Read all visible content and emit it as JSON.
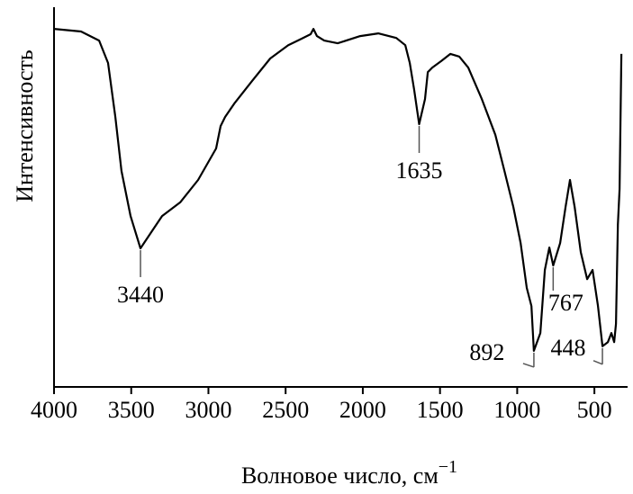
{
  "chart_data": {
    "type": "line",
    "xlabel": "Волновое число, см",
    "xlabel_superscript": "−1",
    "ylabel": "Интенсивность",
    "xlim": [
      4000,
      285
    ],
    "ylim": [
      0,
      100
    ],
    "xticks": [
      4000,
      3500,
      3000,
      2500,
      2000,
      1500,
      1000,
      500
    ],
    "annotations": [
      3440,
      1635,
      892,
      767,
      448
    ],
    "series": [
      {
        "color": "#000000",
        "x": [
          4000,
          3825,
          3708,
          3650,
          3603,
          3563,
          3504,
          3440,
          3358,
          3300,
          3183,
          3067,
          2950,
          2921,
          2892,
          2833,
          2717,
          2600,
          2483,
          2396,
          2338,
          2320,
          2297,
          2250,
          2163,
          2017,
          1900,
          1783,
          1725,
          1696,
          1667,
          1635,
          1597,
          1579,
          1550,
          1492,
          1433,
          1375,
          1317,
          1229,
          1142,
          1083,
          1025,
          978,
          938,
          908,
          892,
          850,
          821,
          792,
          767,
          722,
          687,
          658,
          628,
          588,
          547,
          512,
          477,
          448,
          413,
          390,
          372,
          360,
          348,
          337,
          325
        ],
        "values": [
          94.3,
          93.6,
          91.2,
          85.3,
          71.1,
          56.9,
          45.0,
          36.5,
          41.5,
          45.0,
          48.6,
          54.5,
          62.8,
          68.7,
          71.1,
          74.6,
          80.6,
          86.5,
          90.0,
          91.7,
          92.9,
          94.3,
          92.4,
          91.2,
          90.5,
          92.4,
          93.1,
          91.9,
          90.0,
          85.3,
          78.2,
          69.2,
          75.8,
          82.9,
          84.1,
          85.8,
          87.7,
          87.0,
          84.1,
          75.8,
          66.4,
          56.9,
          47.4,
          37.9,
          26.1,
          21.3,
          9.5,
          14.2,
          30.8,
          36.7,
          32.0,
          37.9,
          47.4,
          54.5,
          47.4,
          35.5,
          28.4,
          30.8,
          21.3,
          10.7,
          11.8,
          14.2,
          11.8,
          16.6,
          42.7,
          52.1,
          87.7
        ]
      }
    ]
  }
}
